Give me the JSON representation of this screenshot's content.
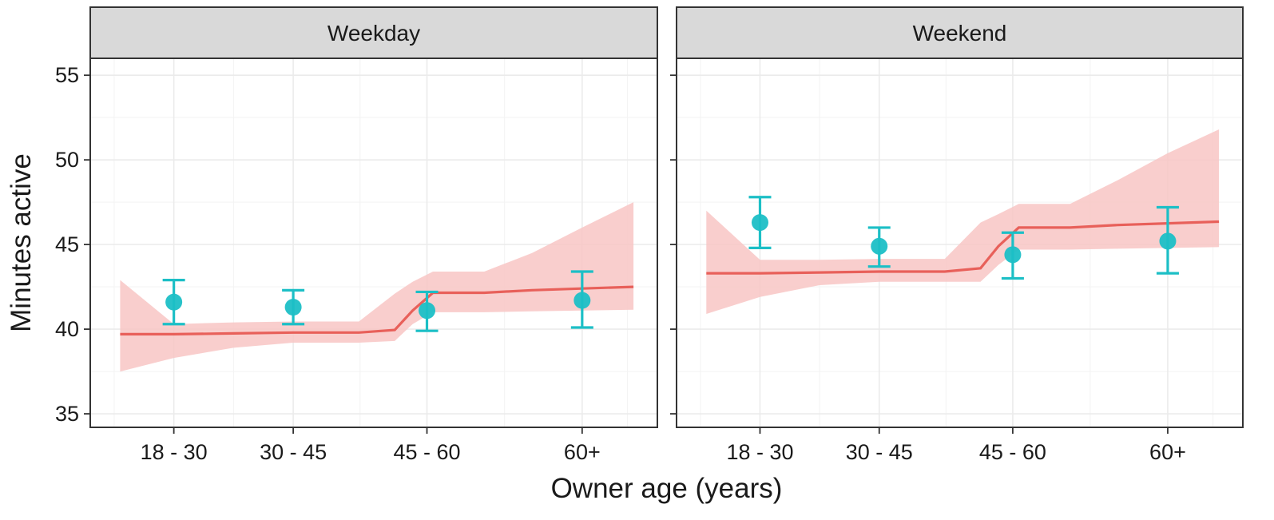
{
  "chart_data": {
    "type": "line",
    "xlabel": "Owner age (years)",
    "ylabel": "Minutes active",
    "ylim": [
      34.2,
      56.0
    ],
    "yticks": [
      35,
      40,
      45,
      50,
      55
    ],
    "categories": [
      "18 - 30",
      "30 - 45",
      "45 - 60",
      "60+"
    ],
    "colors": {
      "fit_line": "#e8605a",
      "ribbon": "#f8c6c4",
      "points": "#1cbfc6",
      "strip_bg": "#d9d9d9",
      "grid": "#ebebeb",
      "border": "#333333"
    },
    "panels": [
      {
        "title": "Weekday",
        "points": [
          {
            "category": "18 - 30",
            "x": 1,
            "mean": 41.6,
            "lower": 40.3,
            "upper": 42.9
          },
          {
            "category": "30 - 45",
            "x": 2,
            "mean": 41.3,
            "lower": 40.3,
            "upper": 42.3
          },
          {
            "category": "45 - 60",
            "x": 3.12,
            "mean": 41.1,
            "lower": 39.9,
            "upper": 42.2
          },
          {
            "category": "60+",
            "x": 4.42,
            "mean": 41.7,
            "lower": 40.1,
            "upper": 43.4
          }
        ],
        "fit": {
          "x": [
            0.55,
            1.0,
            1.5,
            2.0,
            2.55,
            2.85,
            3.0,
            3.17,
            3.6,
            4.0,
            4.42,
            4.85
          ],
          "y": [
            39.7,
            39.7,
            39.75,
            39.8,
            39.8,
            39.95,
            41.1,
            42.15,
            42.15,
            42.3,
            42.4,
            42.5
          ],
          "lower": [
            37.5,
            38.3,
            38.9,
            39.2,
            39.2,
            39.3,
            40.3,
            41.0,
            41.0,
            41.05,
            41.1,
            41.15
          ],
          "upper": [
            42.9,
            40.3,
            40.4,
            40.45,
            40.45,
            42.1,
            42.8,
            43.4,
            43.4,
            44.5,
            46.0,
            47.5
          ]
        }
      },
      {
        "title": "Weekend",
        "points": [
          {
            "category": "18 - 30",
            "x": 1,
            "mean": 46.3,
            "lower": 44.8,
            "upper": 47.8
          },
          {
            "category": "30 - 45",
            "x": 2,
            "mean": 44.9,
            "lower": 43.7,
            "upper": 46.0
          },
          {
            "category": "45 - 60",
            "x": 3.12,
            "mean": 44.4,
            "lower": 43.0,
            "upper": 45.7
          },
          {
            "category": "60+",
            "x": 4.42,
            "mean": 45.2,
            "lower": 43.3,
            "upper": 47.2
          }
        ],
        "fit": {
          "x": [
            0.55,
            1.0,
            1.5,
            2.0,
            2.55,
            2.85,
            3.0,
            3.17,
            3.6,
            4.0,
            4.42,
            4.85
          ],
          "y": [
            43.3,
            43.3,
            43.35,
            43.4,
            43.4,
            43.6,
            44.9,
            46.0,
            46.0,
            46.15,
            46.25,
            46.35
          ],
          "lower": [
            40.9,
            41.9,
            42.6,
            42.8,
            42.8,
            42.8,
            43.8,
            44.7,
            44.7,
            44.75,
            44.8,
            44.85
          ],
          "upper": [
            47.0,
            44.1,
            44.1,
            44.15,
            44.15,
            46.3,
            46.8,
            47.4,
            47.4,
            48.8,
            50.4,
            51.8
          ]
        }
      }
    ]
  }
}
